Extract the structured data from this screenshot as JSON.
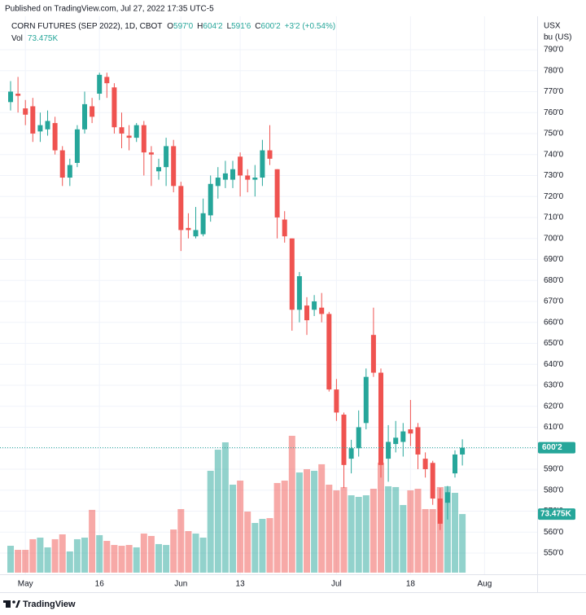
{
  "chart_data": {
    "type": "candlestick",
    "publisher": "Published on TradingView.com, Jul 27, 2022 17:35 UTC-5",
    "title": "CORN FUTURES (SEP 2022), 1D, CBOT",
    "ohlc_legend": [
      {
        "key": "O",
        "value": "597'0"
      },
      {
        "key": "H",
        "value": "604'2"
      },
      {
        "key": "L",
        "value": "591'6"
      },
      {
        "key": "C",
        "value": "600'2"
      }
    ],
    "change": "+3'2 (+0.54%)",
    "y_unit": [
      "USX",
      "bu (US)"
    ],
    "up_color": "#26a69a",
    "down_color": "#ef5350",
    "open": [
      765,
      769,
      762,
      763,
      751,
      752,
      755,
      742,
      729,
      736,
      752,
      763,
      769,
      777,
      772,
      753,
      749,
      748,
      754,
      741,
      732,
      734,
      744,
      725,
      705,
      701,
      702,
      711,
      725,
      728,
      728,
      739,
      730,
      728,
      729,
      742,
      733,
      709,
      700,
      666,
      668,
      666,
      667,
      664,
      628,
      616,
      595,
      600,
      612,
      654,
      636,
      595,
      602,
      603,
      609,
      610,
      595,
      593,
      576,
      574,
      588,
      597
    ],
    "high": [
      775,
      777,
      766,
      767,
      760,
      761,
      758,
      744,
      738,
      754,
      770,
      767,
      779,
      779,
      774,
      760,
      754,
      755,
      756,
      744,
      738,
      748,
      747,
      727,
      712,
      715,
      719,
      730,
      734,
      737,
      737,
      741,
      733,
      735,
      747,
      754,
      733,
      713,
      700,
      684,
      672,
      673,
      674,
      665,
      633,
      617,
      604,
      618,
      638,
      667,
      638,
      611,
      613,
      612,
      623,
      612,
      598,
      594,
      581,
      582,
      599,
      604.25
    ],
    "low": [
      761,
      760,
      754,
      746,
      746,
      749,
      740,
      725,
      725,
      734,
      750,
      755,
      766,
      767,
      750,
      743,
      742,
      746,
      730,
      725,
      728,
      725,
      722,
      694,
      700,
      700,
      701,
      708,
      719,
      724,
      724,
      720,
      722,
      720,
      725,
      735,
      700,
      698,
      656,
      660,
      654,
      663,
      660,
      627,
      613,
      581,
      588,
      596,
      609,
      634,
      586,
      584,
      598,
      596,
      601,
      590,
      586,
      573,
      561,
      566,
      586,
      591.75
    ],
    "close": [
      770,
      768,
      759,
      750,
      754,
      756,
      742,
      729,
      735,
      752,
      764,
      758,
      778,
      774,
      753,
      750,
      748,
      754,
      741,
      740,
      734,
      744,
      725,
      704,
      704,
      704,
      712,
      726,
      729,
      731,
      733,
      730,
      728,
      729,
      742,
      738,
      710,
      701,
      666,
      682,
      661,
      670,
      664,
      628,
      617,
      592,
      600,
      610,
      634,
      636,
      592,
      603,
      605,
      608,
      607,
      597,
      590,
      576,
      564,
      579,
      597,
      600.25
    ],
    "volume": {
      "name": "Vol",
      "last_label": "73.475K",
      "values": [
        33.7,
        28.6,
        28.6,
        41.9,
        43.9,
        31.7,
        41.9,
        48.0,
        26.6,
        41.9,
        43.9,
        78.7,
        47.0,
        39.8,
        34.7,
        33.7,
        34.7,
        31.7,
        49.0,
        46.0,
        35.8,
        34.7,
        54.1,
        79.7,
        52.1,
        49.0,
        43.9,
        127.7,
        154.2,
        163.4,
        110.3,
        115.4,
        76.6,
        62.3,
        67.4,
        68.4,
        112.4,
        115.4,
        171.6,
        125.6,
        129.7,
        127.7,
        135.9,
        110.3,
        103.2,
        107.3,
        97.0,
        95.0,
        97.0,
        105.2,
        137.9,
        108.3,
        107.3,
        84.8,
        103.2,
        105.2,
        79.7,
        79.7,
        107.3,
        108.3,
        100.1,
        73.475
      ]
    },
    "last_price": {
      "value": 600.25,
      "label": "600'2"
    },
    "ylim": [
      539.9,
      805.9
    ],
    "yticks": [
      {
        "value": 550,
        "label": "550'0"
      },
      {
        "value": 560,
        "label": "560'0"
      },
      {
        "value": 570,
        "label": "570'0"
      },
      {
        "value": 580,
        "label": "580'0"
      },
      {
        "value": 590,
        "label": "590'0"
      },
      {
        "value": 600,
        "label": "600'0"
      },
      {
        "value": 610,
        "label": "610'0"
      },
      {
        "value": 620,
        "label": "620'0"
      },
      {
        "value": 630,
        "label": "630'0"
      },
      {
        "value": 640,
        "label": "640'0"
      },
      {
        "value": 650,
        "label": "650'0"
      },
      {
        "value": 660,
        "label": "660'0"
      },
      {
        "value": 670,
        "label": "670'0"
      },
      {
        "value": 680,
        "label": "680'0"
      },
      {
        "value": 690,
        "label": "690'0"
      },
      {
        "value": 700,
        "label": "700'0"
      },
      {
        "value": 710,
        "label": "710'0"
      },
      {
        "value": 720,
        "label": "720'0"
      },
      {
        "value": 730,
        "label": "730'0"
      },
      {
        "value": 740,
        "label": "740'0"
      },
      {
        "value": 750,
        "label": "750'0"
      },
      {
        "value": 760,
        "label": "760'0"
      },
      {
        "value": 770,
        "label": "770'0"
      },
      {
        "value": 780,
        "label": "780'0"
      },
      {
        "value": 790,
        "label": "790'0"
      }
    ],
    "xlim": [
      -1.43,
      71.1
    ],
    "xticks": [
      {
        "value": 2,
        "label": "May"
      },
      {
        "value": 12,
        "label": "16"
      },
      {
        "value": 23,
        "label": "Jun"
      },
      {
        "value": 31,
        "label": "13"
      },
      {
        "value": 44,
        "label": "Jul"
      },
      {
        "value": 54,
        "label": "18"
      },
      {
        "value": 64,
        "label": "Aug"
      }
    ],
    "grid": true,
    "branding": "TradingView"
  }
}
